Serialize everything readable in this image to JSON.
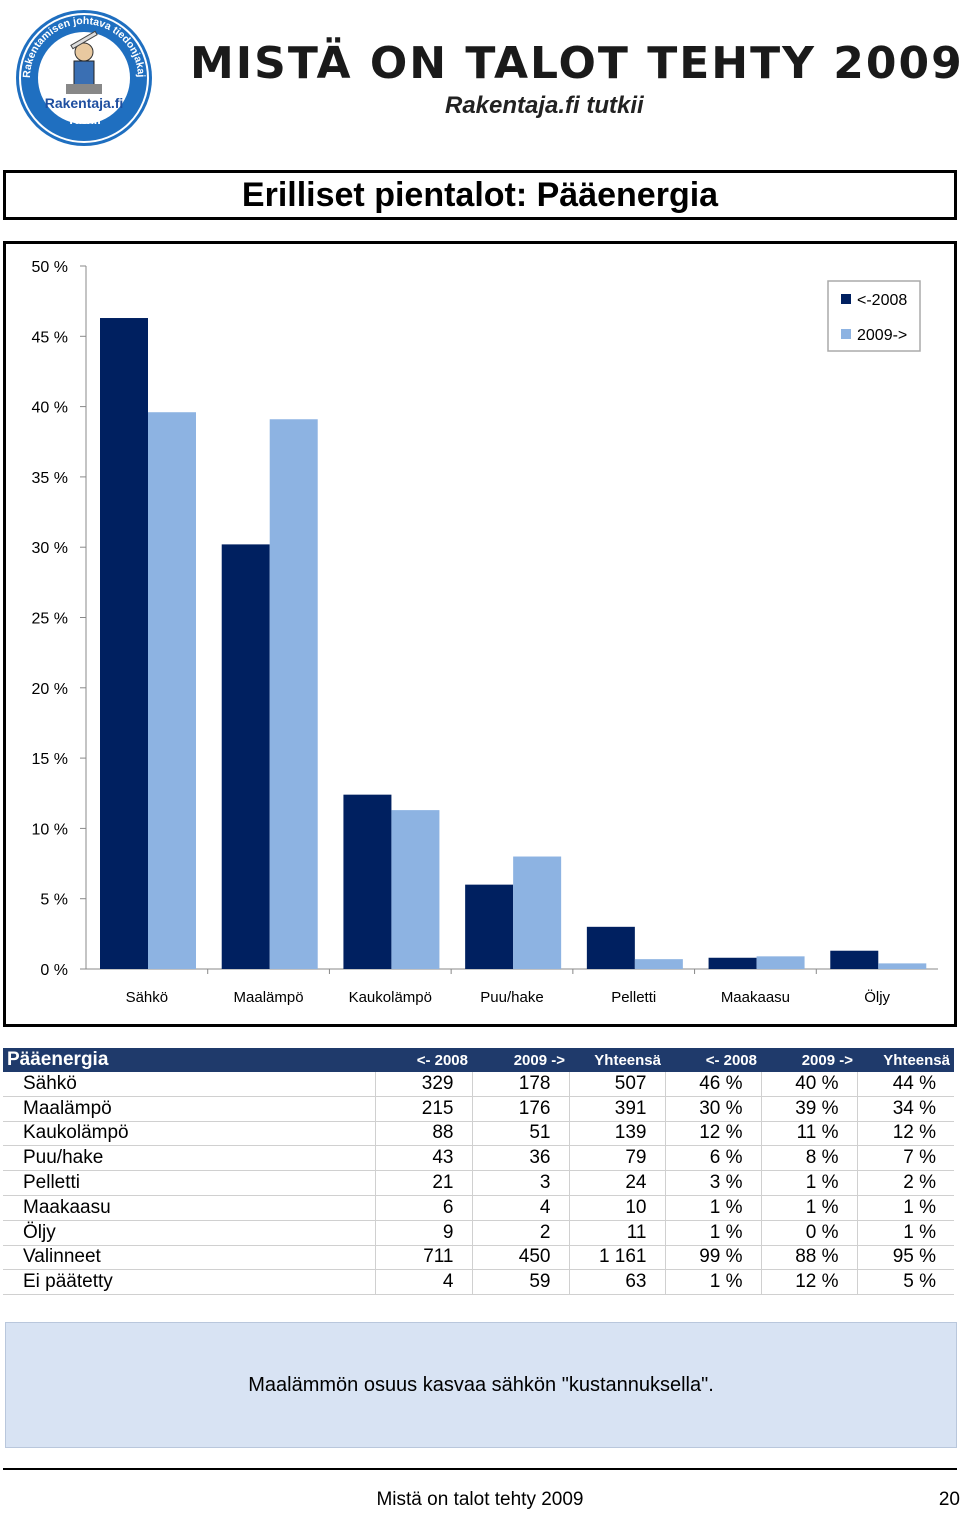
{
  "header": {
    "logo_ring_text": "Rakentamisen johtava tiedonjakaja",
    "logo_name": "Rakentaja.fi",
    "logo_sub": "Tutkii",
    "title": "MISTÄ ON TALOT TEHTY 2009",
    "subtitle": "Rakentaja.fi tutkii"
  },
  "section_title": "Erilliset pientalot: Pääenergia",
  "colors": {
    "series_2008": "#002060",
    "series_2009": "#8db3e2",
    "table_header": "#1f3a6b",
    "note_bg": "#d8e3f3"
  },
  "chart_data": {
    "type": "bar",
    "categories": [
      "Sähkö",
      "Maalämpö",
      "Kaukolämpö",
      "Puu/hake",
      "Pelletti",
      "Maakaasu",
      "Öljy"
    ],
    "series": [
      {
        "name": "<-2008",
        "values": [
          46.3,
          30.2,
          12.4,
          6.0,
          3.0,
          0.8,
          1.3
        ]
      },
      {
        "name": "2009->",
        "values": [
          39.6,
          39.1,
          11.3,
          8.0,
          0.7,
          0.9,
          0.4
        ]
      }
    ],
    "yticks": [
      "0 %",
      "5 %",
      "10 %",
      "15 %",
      "20 %",
      "25 %",
      "30 %",
      "35 %",
      "40 %",
      "45 %",
      "50 %"
    ],
    "ylim": [
      0,
      50
    ],
    "legend_position": "top-right",
    "grid": false
  },
  "table": {
    "headers": [
      "Pääenergia",
      "<- 2008",
      "2009 ->",
      "Yhteensä",
      "<- 2008",
      "2009 ->",
      "Yhteensä"
    ],
    "rows": [
      [
        "Sähkö",
        "329",
        "178",
        "507",
        "46 %",
        "40 %",
        "44 %"
      ],
      [
        "Maalämpö",
        "215",
        "176",
        "391",
        "30 %",
        "39 %",
        "34 %"
      ],
      [
        "Kaukolämpö",
        "88",
        "51",
        "139",
        "12 %",
        "11 %",
        "12 %"
      ],
      [
        "Puu/hake",
        "43",
        "36",
        "79",
        "6 %",
        "8 %",
        "7 %"
      ],
      [
        "Pelletti",
        "21",
        "3",
        "24",
        "3 %",
        "1 %",
        "2 %"
      ],
      [
        "Maakaasu",
        "6",
        "4",
        "10",
        "1 %",
        "1 %",
        "1 %"
      ],
      [
        "Öljy",
        "9",
        "2",
        "11",
        "1 %",
        "0 %",
        "1 %"
      ],
      [
        "Valinneet",
        "711",
        "450",
        "1 161",
        "99 %",
        "88 %",
        "95 %"
      ],
      [
        "Ei päätetty",
        "4",
        "59",
        "63",
        "1 %",
        "12 %",
        "5 %"
      ]
    ]
  },
  "note": "Maalämmön osuus kasvaa sähkön \"kustannuksella\".",
  "footer": {
    "text": "Mistä on talot tehty 2009",
    "page_number": "20"
  }
}
